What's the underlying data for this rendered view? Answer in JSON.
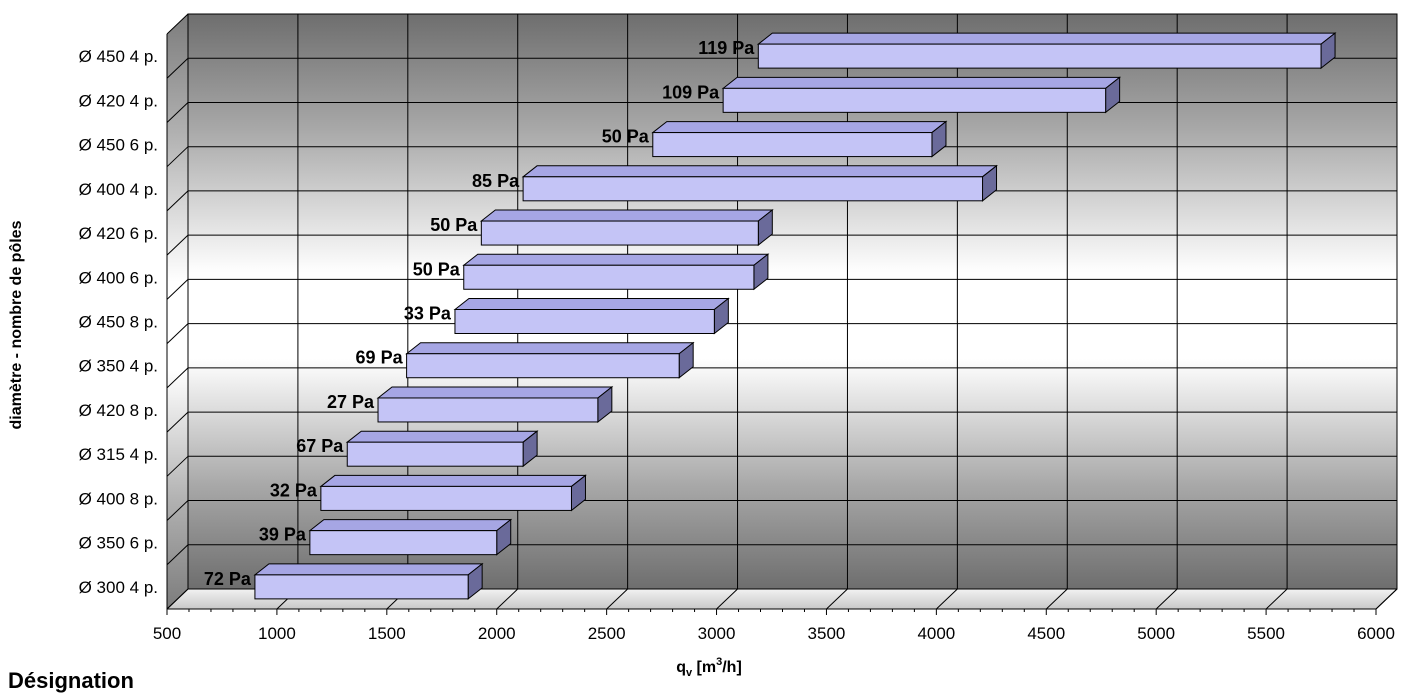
{
  "caption": "Désignation",
  "chart_data": {
    "type": "bar",
    "orientation": "horizontal-floating",
    "xlabel": "qv [m3/h]",
    "ylabel": "diamètre - nombre de pôles",
    "xlim": [
      500,
      6000
    ],
    "xticks": [
      500,
      1000,
      1500,
      2000,
      2500,
      3000,
      3500,
      4000,
      4500,
      5000,
      5500,
      6000
    ],
    "grid": true,
    "categories": [
      "Ø 450 4 p.",
      "Ø 420 4 p.",
      "Ø 450 6 p.",
      "Ø 400 4 p.",
      "Ø 420 6 p.",
      "Ø 400 6 p.",
      "Ø 450 8 p.",
      "Ø 350 4 p.",
      "Ø 420 8 p.",
      "Ø 315 4 p.",
      "Ø 400 8 p.",
      "Ø 350 6 p.",
      "Ø 300 4 p."
    ],
    "ranges": [
      [
        3190,
        5750
      ],
      [
        3030,
        4770
      ],
      [
        2710,
        3980
      ],
      [
        2120,
        4210
      ],
      [
        1930,
        3190
      ],
      [
        1850,
        3170
      ],
      [
        1810,
        2990
      ],
      [
        1590,
        2830
      ],
      [
        1460,
        2460
      ],
      [
        1320,
        2120
      ],
      [
        1200,
        2340
      ],
      [
        1150,
        2000
      ],
      [
        900,
        1870
      ]
    ],
    "bar_labels": [
      "119 Pa",
      "109 Pa",
      "50 Pa",
      "85 Pa",
      "50 Pa",
      "50 Pa",
      "33 Pa",
      "69 Pa",
      "27 Pa",
      "67 Pa",
      "32 Pa",
      "39 Pa",
      "72 Pa"
    ],
    "colors": {
      "bar_front": "#c4c4f6",
      "bar_top": "#a6a6e4",
      "bar_side": "#6a6a9a",
      "grid": "#000000"
    }
  }
}
